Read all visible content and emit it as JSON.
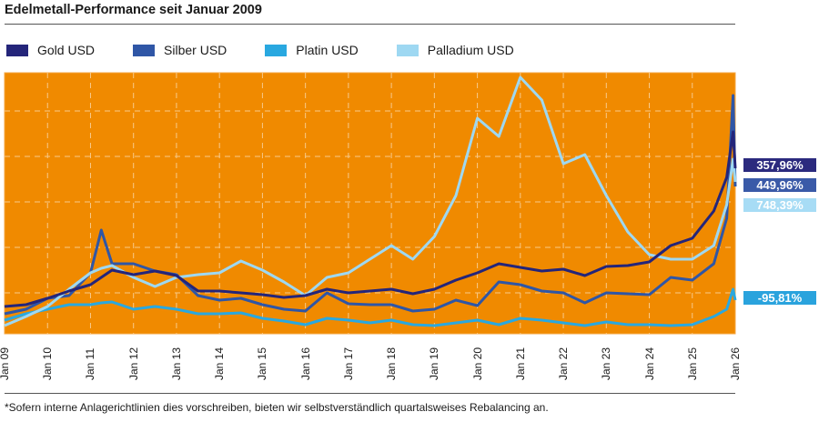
{
  "title": "Edelmetall-Performance seit Januar 2009",
  "footnote": "*Sofern interne Anlagerichtlinien dies vorschreiben, bieten wir selbstverständlich quartalsweises Rebalancing an.",
  "colors": {
    "background": "#f08a00",
    "grid": "#f7c98a"
  },
  "chart_data": {
    "type": "line",
    "title": "Edelmetall-Performance seit Januar 2009",
    "xlabel": "",
    "ylabel": "",
    "grid": true,
    "legend": "top",
    "x_tick_labels": [
      "Jan 09",
      "Jan 10",
      "Jan 11",
      "Jan 12",
      "Jan 13",
      "Jan 14",
      "Jan 15",
      "Jan 16",
      "Jan 17",
      "Jan 18",
      "Jan 19",
      "Jan 20",
      "Jan 21",
      "Jan 22",
      "Jan 23",
      "Jan 24",
      "Jan 25",
      "Jan 26"
    ],
    "xlim": [
      2009,
      2026
    ],
    "ylim": [
      0,
      574
    ],
    "x": [
      2009,
      2009.5,
      2010,
      2010.5,
      2011,
      2011.25,
      2011.5,
      2012,
      2012.5,
      2013,
      2013.5,
      2014,
      2014.5,
      2015,
      2015.5,
      2016,
      2016.5,
      2017,
      2017.5,
      2018,
      2018.5,
      2019,
      2019.5,
      2020,
      2020.5,
      2021,
      2021.5,
      2022,
      2022.5,
      2023,
      2023.5,
      2024,
      2024.5,
      2025,
      2025.5,
      2025.8,
      2025.95,
      2026
    ],
    "series": [
      {
        "name": "Gold USD",
        "color": "#24257a",
        "end_label": "357,96%",
        "label_color": "#2b2a7e",
        "values": [
          60,
          64,
          78,
          94,
          108,
          124,
          140,
          130,
          138,
          128,
          94,
          94,
          90,
          86,
          80,
          84,
          98,
          90,
          94,
          98,
          88,
          98,
          118,
          134,
          154,
          146,
          138,
          142,
          128,
          148,
          150,
          158,
          194,
          210,
          270,
          344,
          444,
          364
        ]
      },
      {
        "name": "Silber USD",
        "color": "#2f56a6",
        "end_label": "449,96%",
        "label_color": "#3a5aa8",
        "values": [
          44,
          54,
          78,
          84,
          134,
          228,
          154,
          154,
          138,
          130,
          84,
          74,
          78,
          64,
          54,
          50,
          90,
          66,
          64,
          64,
          50,
          54,
          74,
          62,
          114,
          108,
          94,
          90,
          68,
          90,
          88,
          86,
          124,
          118,
          154,
          254,
          524,
          324
        ]
      },
      {
        "name": "Platin USD",
        "color": "#29a8e0",
        "end_label": "-95,81%",
        "label_color": "#2aa3dd",
        "values": [
          30,
          44,
          54,
          64,
          64,
          68,
          70,
          54,
          60,
          54,
          44,
          44,
          46,
          34,
          28,
          20,
          34,
          30,
          24,
          30,
          20,
          18,
          24,
          30,
          20,
          34,
          30,
          24,
          18,
          26,
          20,
          20,
          18,
          20,
          38,
          54,
          98,
          74
        ]
      },
      {
        "name": "Palladium USD",
        "color": "#9ed8f2",
        "end_label": "748,39%",
        "label_color": "#a7dcf5",
        "values": [
          18,
          38,
          60,
          98,
          134,
          144,
          150,
          124,
          104,
          124,
          130,
          134,
          160,
          140,
          114,
          84,
          124,
          134,
          164,
          194,
          164,
          214,
          304,
          474,
          434,
          564,
          514,
          374,
          394,
          304,
          224,
          174,
          164,
          164,
          194,
          284,
          384,
          334
        ]
      }
    ]
  }
}
